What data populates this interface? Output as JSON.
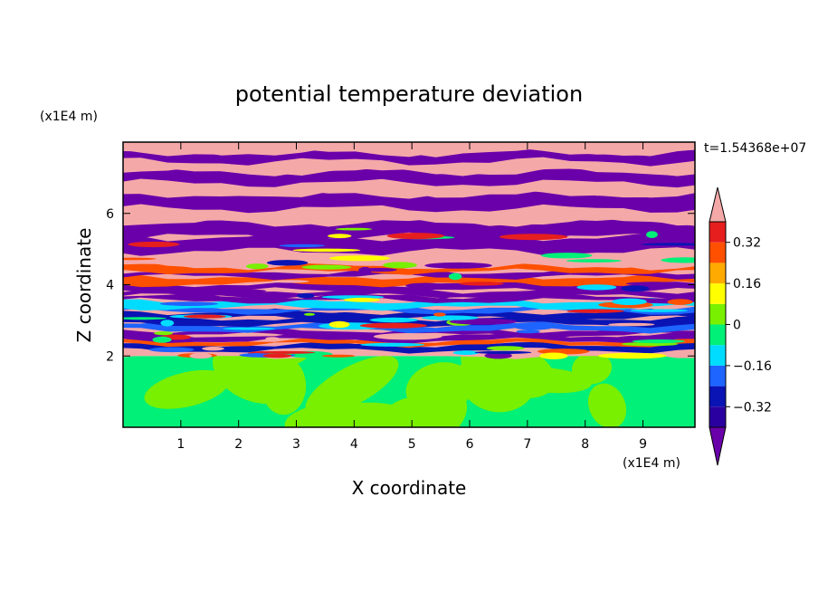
{
  "chart_data": {
    "type": "heatmap",
    "title": "potential temperature deviation",
    "xlabel": "X coordinate",
    "ylabel": "Z coordinate",
    "x_unit": "(x1E4 m)",
    "y_unit": "(x1E4 m)",
    "time_label": "t=1.54368e+07",
    "xlim": [
      0,
      9.9
    ],
    "ylim": [
      0,
      8
    ],
    "xticks": [
      1,
      2,
      3,
      4,
      5,
      6,
      7,
      8,
      9
    ],
    "yticks": [
      2,
      4,
      6
    ],
    "colorbar": {
      "levels": [
        -0.4,
        -0.32,
        -0.24,
        -0.16,
        -0.08,
        0,
        0.08,
        0.16,
        0.24,
        0.32,
        0.4
      ],
      "labeled": [
        0.32,
        0.16,
        0,
        -0.16,
        -0.32
      ],
      "label_text": [
        "0.32",
        "0.16",
        "0",
        "−0.16",
        "−0.32"
      ],
      "colors_low_to_high": [
        "#2a00a0",
        "#0a14b4",
        "#1e64ff",
        "#00dcff",
        "#00f078",
        "#78f000",
        "#ffff00",
        "#ffaa00",
        "#ff5000",
        "#e61e1e"
      ],
      "under_color": "#6a00aa",
      "over_color": "#f5a8a8",
      "extend": "both",
      "position": "right"
    },
    "regions": {
      "lower_layer": {
        "z_range": [
          0,
          2
        ],
        "values": [
          -0.08,
          0.04
        ],
        "colors": [
          "#00f078",
          "#78f000"
        ]
      },
      "stratified_layer": {
        "z_range": [
          2,
          8
        ],
        "pattern": "alternating bands",
        "dominant_colors": [
          "#f5a8a8",
          "#6a00aa"
        ]
      }
    }
  }
}
